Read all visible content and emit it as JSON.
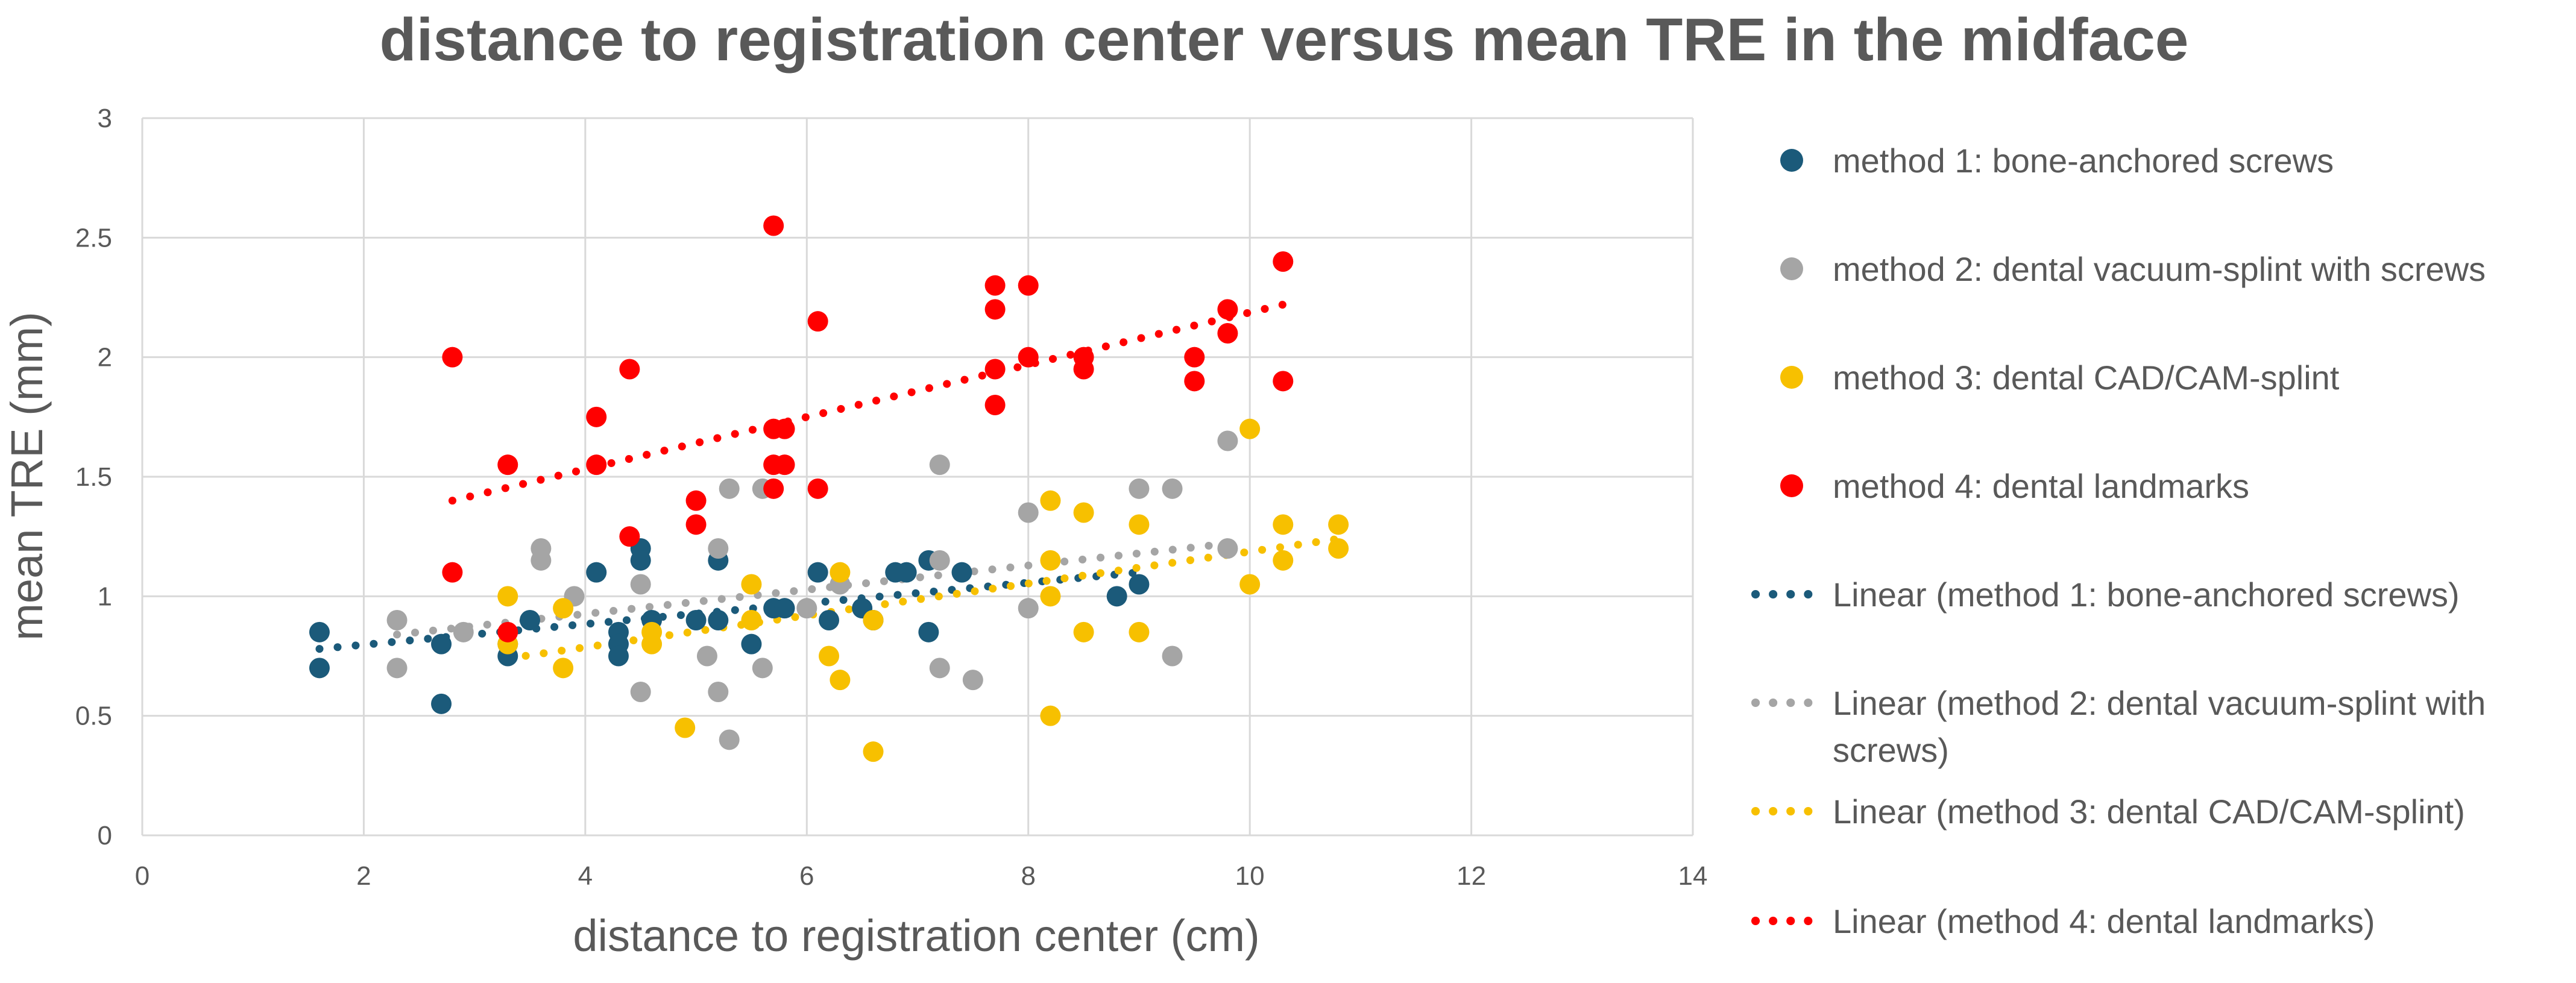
{
  "chart_data": {
    "type": "scatter",
    "title": "distance to registration center versus mean TRE in the midface",
    "xlabel": "distance to registration center (cm)",
    "ylabel": "mean TRE (mm)",
    "xlim": [
      0,
      14
    ],
    "ylim": [
      0,
      3
    ],
    "x_ticks": [
      "0",
      "2",
      "4",
      "6",
      "8",
      "10",
      "12",
      "14"
    ],
    "y_ticks": [
      "0",
      "0.5",
      "1",
      "1.5",
      "2",
      "2.5",
      "3"
    ],
    "grid": true,
    "legend_position": "right",
    "series": [
      {
        "name": "method 1: bone-anchored screws",
        "color": "#1b5a7a",
        "points": [
          [
            1.6,
            0.85
          ],
          [
            1.6,
            0.7
          ],
          [
            2.7,
            0.8
          ],
          [
            2.7,
            0.55
          ],
          [
            3.3,
            0.8
          ],
          [
            3.3,
            0.75
          ],
          [
            3.5,
            0.9
          ],
          [
            4.1,
            1.1
          ],
          [
            4.3,
            0.85
          ],
          [
            4.3,
            0.8
          ],
          [
            4.3,
            0.75
          ],
          [
            4.5,
            1.2
          ],
          [
            4.5,
            1.15
          ],
          [
            4.6,
            0.9
          ],
          [
            5.0,
            0.9
          ],
          [
            5.2,
            1.15
          ],
          [
            5.2,
            0.9
          ],
          [
            5.5,
            0.8
          ],
          [
            5.7,
            0.95
          ],
          [
            5.8,
            0.95
          ],
          [
            6.1,
            1.1
          ],
          [
            6.2,
            0.9
          ],
          [
            6.5,
            0.95
          ],
          [
            6.6,
            0.9
          ],
          [
            6.8,
            1.1
          ],
          [
            6.9,
            1.1
          ],
          [
            7.1,
            1.15
          ],
          [
            7.1,
            0.85
          ],
          [
            7.4,
            1.1
          ],
          [
            8.8,
            1.0
          ],
          [
            9.0,
            1.05
          ]
        ]
      },
      {
        "name": "method 2: dental vacuum-splint with screws",
        "color": "#a5a5a5",
        "points": [
          [
            2.3,
            0.9
          ],
          [
            2.3,
            0.7
          ],
          [
            2.9,
            0.85
          ],
          [
            3.6,
            1.2
          ],
          [
            3.6,
            1.15
          ],
          [
            3.9,
            1.0
          ],
          [
            4.5,
            1.05
          ],
          [
            4.5,
            0.6
          ],
          [
            5.1,
            0.75
          ],
          [
            5.2,
            1.2
          ],
          [
            5.2,
            0.6
          ],
          [
            5.3,
            1.45
          ],
          [
            5.3,
            0.4
          ],
          [
            5.6,
            1.45
          ],
          [
            5.6,
            0.7
          ],
          [
            6.0,
            0.95
          ],
          [
            6.3,
            1.05
          ],
          [
            7.2,
            1.55
          ],
          [
            7.2,
            1.15
          ],
          [
            7.2,
            0.7
          ],
          [
            7.5,
            0.65
          ],
          [
            8.0,
            1.35
          ],
          [
            8.0,
            0.95
          ],
          [
            9.0,
            1.45
          ],
          [
            9.3,
            1.45
          ],
          [
            9.3,
            0.75
          ],
          [
            9.8,
            1.65
          ],
          [
            9.8,
            1.2
          ]
        ]
      },
      {
        "name": "method 3: dental CAD/CAM-splint",
        "color": "#f7c000",
        "points": [
          [
            3.3,
            1.0
          ],
          [
            3.3,
            0.8
          ],
          [
            3.8,
            0.95
          ],
          [
            3.8,
            0.7
          ],
          [
            4.6,
            0.85
          ],
          [
            4.6,
            0.8
          ],
          [
            4.9,
            0.45
          ],
          [
            5.5,
            1.05
          ],
          [
            5.5,
            0.9
          ],
          [
            6.2,
            0.75
          ],
          [
            6.3,
            1.1
          ],
          [
            6.3,
            0.65
          ],
          [
            6.6,
            0.9
          ],
          [
            6.6,
            0.35
          ],
          [
            8.2,
            1.4
          ],
          [
            8.2,
            1.15
          ],
          [
            8.2,
            1.0
          ],
          [
            8.2,
            0.5
          ],
          [
            8.5,
            1.35
          ],
          [
            8.5,
            0.85
          ],
          [
            9.0,
            1.3
          ],
          [
            9.0,
            0.85
          ],
          [
            10.0,
            1.7
          ],
          [
            10.0,
            1.05
          ],
          [
            10.3,
            1.3
          ],
          [
            10.3,
            1.15
          ],
          [
            10.8,
            1.3
          ],
          [
            10.8,
            1.2
          ]
        ]
      },
      {
        "name": "method 4: dental landmarks",
        "color": "#ff0000",
        "points": [
          [
            2.8,
            2.0
          ],
          [
            2.8,
            1.1
          ],
          [
            3.3,
            1.55
          ],
          [
            3.3,
            0.85
          ],
          [
            4.1,
            1.75
          ],
          [
            4.1,
            1.55
          ],
          [
            4.4,
            1.95
          ],
          [
            4.4,
            1.25
          ],
          [
            5.0,
            1.4
          ],
          [
            5.0,
            1.3
          ],
          [
            5.7,
            2.55
          ],
          [
            5.7,
            1.7
          ],
          [
            5.7,
            1.55
          ],
          [
            5.7,
            1.45
          ],
          [
            5.8,
            1.7
          ],
          [
            5.8,
            1.55
          ],
          [
            6.1,
            2.15
          ],
          [
            6.1,
            1.45
          ],
          [
            7.7,
            2.3
          ],
          [
            7.7,
            2.2
          ],
          [
            7.7,
            1.95
          ],
          [
            7.7,
            1.8
          ],
          [
            8.0,
            2.3
          ],
          [
            8.0,
            2.0
          ],
          [
            8.5,
            2.0
          ],
          [
            8.5,
            1.95
          ],
          [
            9.5,
            2.0
          ],
          [
            9.5,
            1.9
          ],
          [
            9.8,
            2.2
          ],
          [
            9.8,
            2.1
          ],
          [
            10.3,
            2.4
          ],
          [
            10.3,
            1.9
          ]
        ]
      }
    ],
    "trendlines": [
      {
        "name": "Linear (method 1: bone-anchored screws)",
        "color": "#1b5a7a",
        "x": [
          1.6,
          9.0
        ],
        "y": [
          0.78,
          1.1
        ]
      },
      {
        "name": "Linear (method 2: dental vacuum-splint with screws)",
        "color": "#a5a5a5",
        "x": [
          2.3,
          9.8
        ],
        "y": [
          0.84,
          1.22
        ]
      },
      {
        "name": "Linear (method 3: dental CAD/CAM-splint)",
        "color": "#f7c000",
        "x": [
          3.3,
          10.8
        ],
        "y": [
          0.74,
          1.24
        ]
      },
      {
        "name": "Linear (method 4: dental landmarks)",
        "color": "#ff0000",
        "x": [
          2.8,
          10.3
        ],
        "y": [
          1.4,
          2.22
        ]
      }
    ],
    "legend": [
      {
        "kind": "marker",
        "text": "method 1: bone-anchored screws",
        "color": "#1b5a7a"
      },
      {
        "kind": "marker",
        "text": "method 2: dental vacuum-splint with screws",
        "color": "#a5a5a5"
      },
      {
        "kind": "marker",
        "text": "method 3: dental CAD/CAM-splint",
        "color": "#f7c000"
      },
      {
        "kind": "marker",
        "text": "method 4: dental landmarks",
        "color": "#ff0000"
      },
      {
        "kind": "line",
        "text": "Linear (method 1: bone-anchored screws)",
        "color": "#1b5a7a"
      },
      {
        "kind": "line",
        "lines": [
          "Linear (method 2: dental vacuum-splint with",
          "screws)"
        ],
        "color": "#a5a5a5"
      },
      {
        "kind": "line",
        "text": "Linear (method 3: dental CAD/CAM-splint)",
        "color": "#f7c000"
      },
      {
        "kind": "line",
        "text": "Linear (method 4: dental landmarks)",
        "color": "#ff0000"
      }
    ]
  }
}
